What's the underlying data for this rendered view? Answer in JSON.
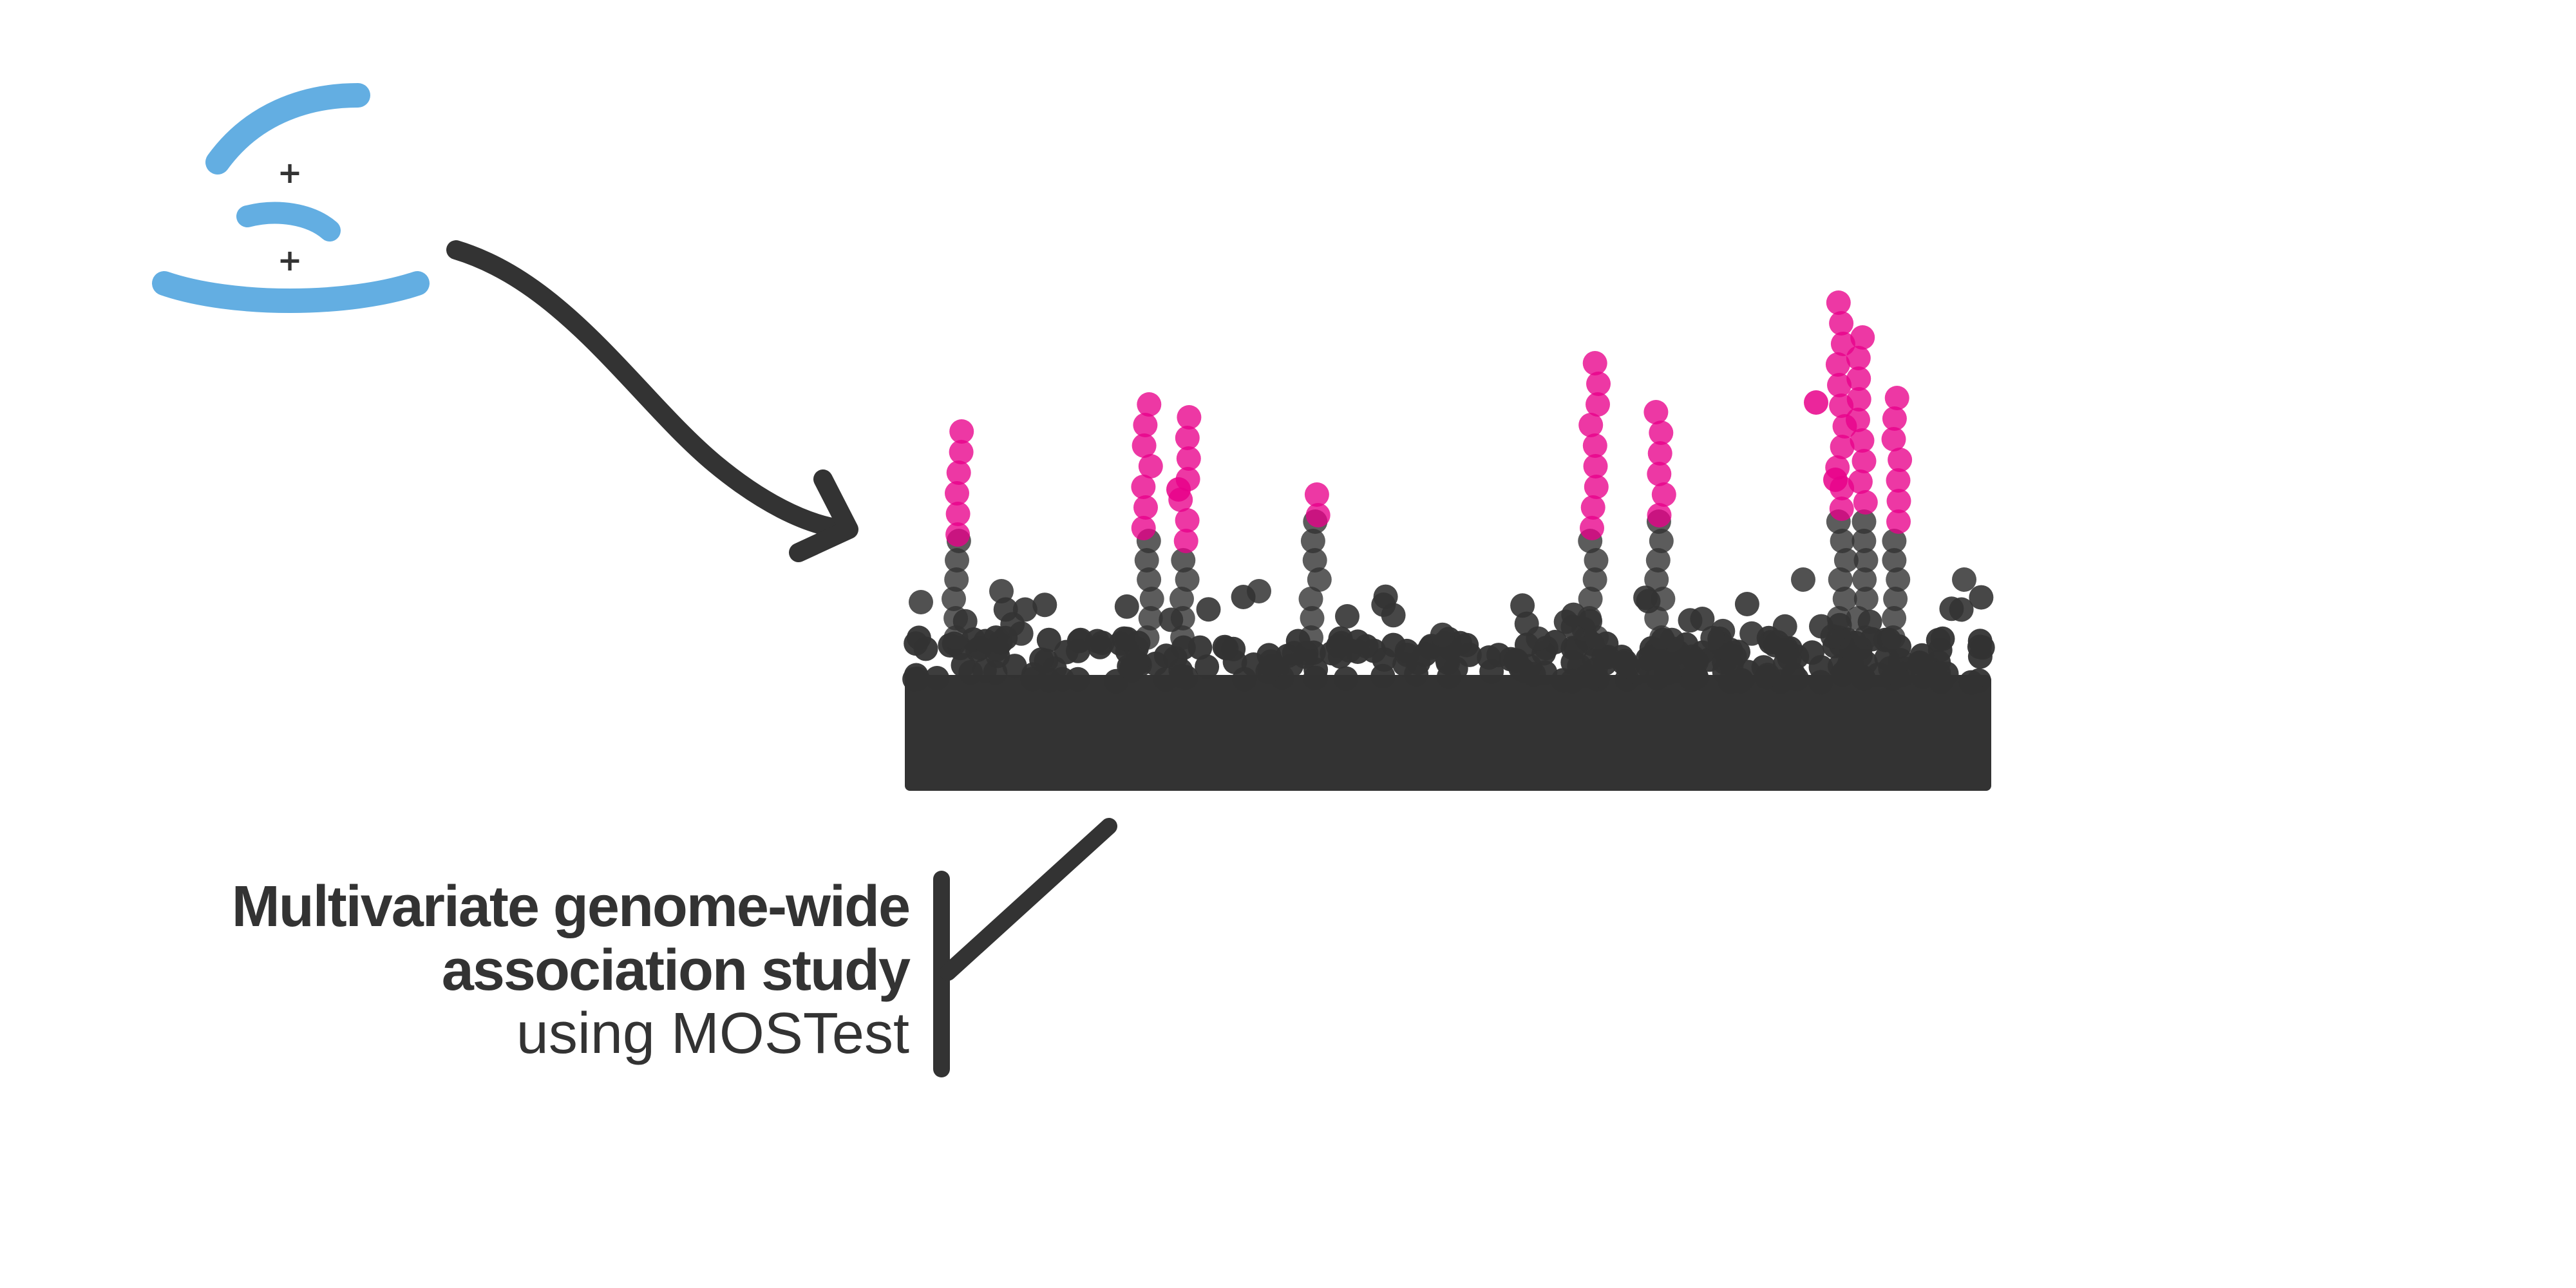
{
  "diagram": {
    "caption": {
      "line1": "Multivariate genome-wide",
      "line2": "association study",
      "line3": "using MOSTest"
    },
    "icon": {
      "name": "brain-arcs-icon",
      "plus1": "+",
      "plus2": "+"
    },
    "colors": {
      "ink": "#333333",
      "significant": "#e8008a",
      "arcs": "#63aee2"
    }
  }
}
